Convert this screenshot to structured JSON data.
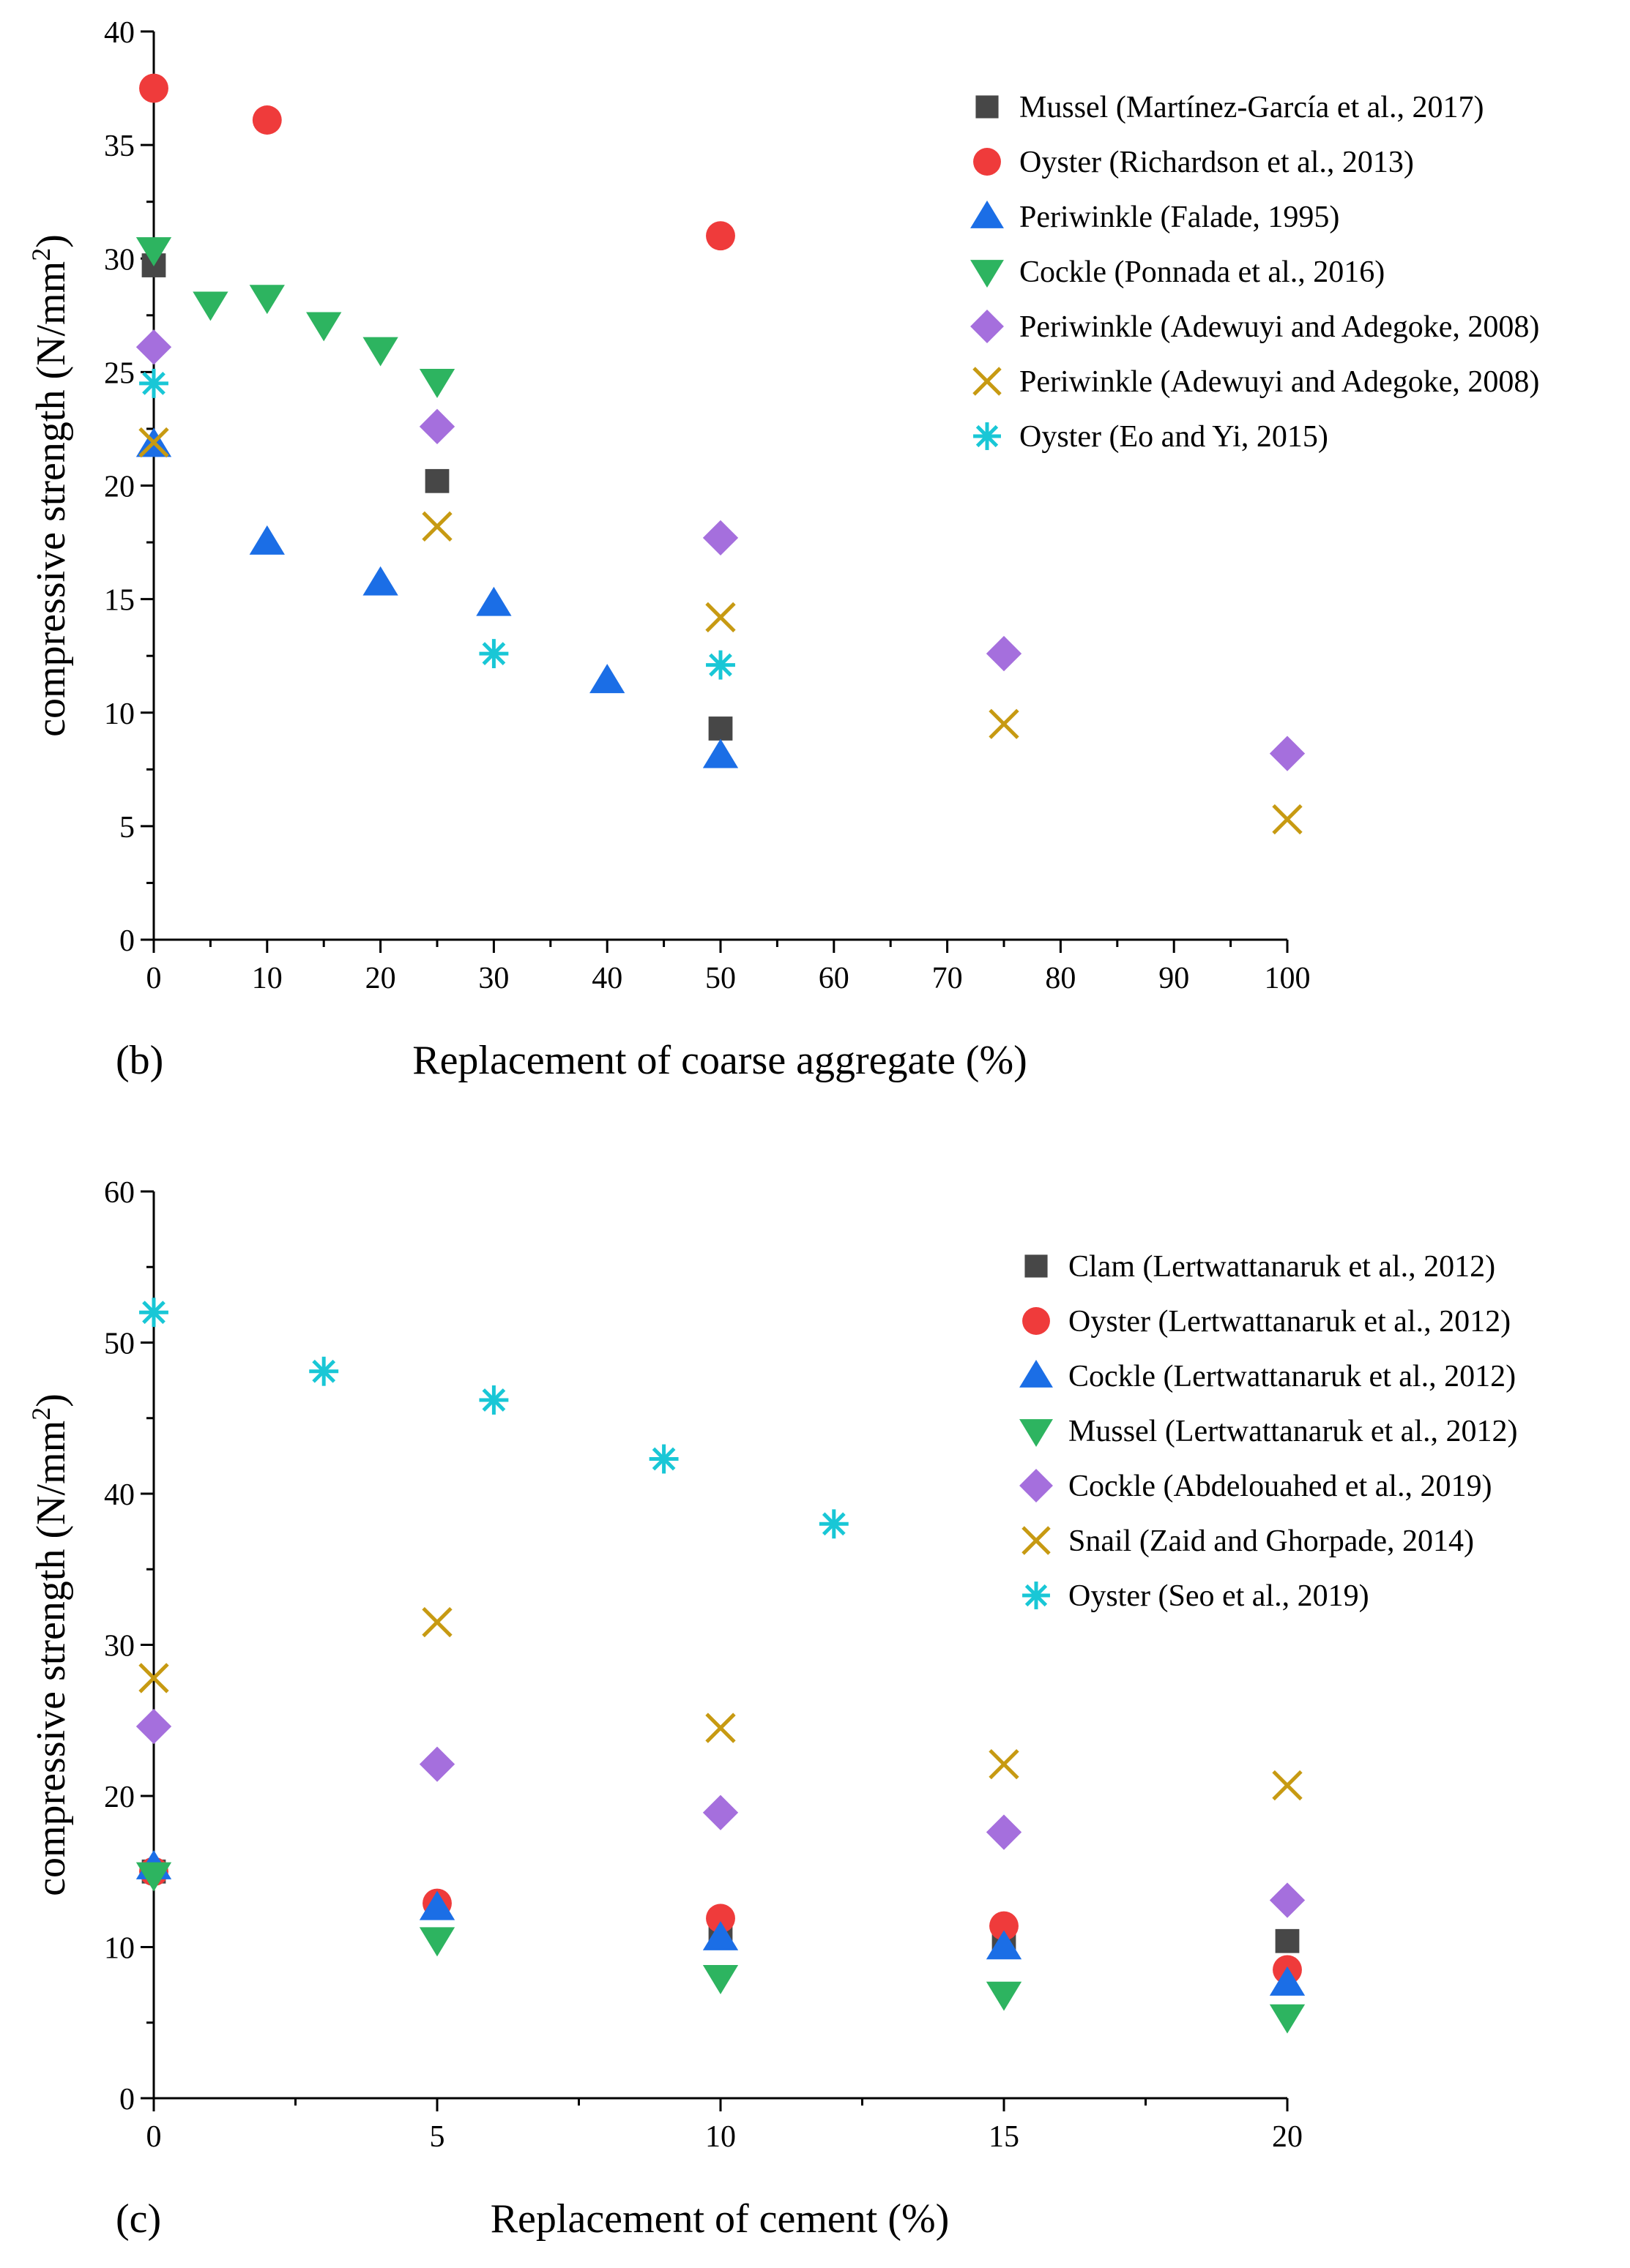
{
  "chart_data": [
    {
      "type": "scatter",
      "panel_label": "(b)",
      "xlabel": "Replacement of coarse aggregate (%)",
      "ylabel_main": "compressive strength (N/mm",
      "ylabel_sup": "2",
      "ylabel_end": ")",
      "xlim": [
        0,
        100
      ],
      "ylim": [
        0,
        40
      ],
      "xticks": [
        0,
        10,
        20,
        30,
        40,
        50,
        60,
        70,
        80,
        90,
        100
      ],
      "yticks": [
        0,
        5,
        10,
        15,
        20,
        25,
        30,
        35,
        40
      ],
      "legend_position": "top-right",
      "series": [
        {
          "name": "Mussel (Martínez-García et al., 2017)",
          "marker": "square",
          "color": "#474747",
          "points": [
            [
              0,
              29.7
            ],
            [
              25,
              20.2
            ],
            [
              50,
              9.3
            ]
          ]
        },
        {
          "name": "Oyster (Richardson et al., 2013)",
          "marker": "circle",
          "color": "#ef3b3b",
          "points": [
            [
              0,
              37.5
            ],
            [
              10,
              36.1
            ],
            [
              50,
              31.0
            ]
          ]
        },
        {
          "name": "Periwinkle (Falade, 1995)",
          "marker": "triangle-up",
          "color": "#1b6ee6",
          "points": [
            [
              0,
              21.8
            ],
            [
              10,
              17.5
            ],
            [
              20,
              15.7
            ],
            [
              30,
              14.8
            ],
            [
              40,
              11.4
            ],
            [
              50,
              8.1
            ]
          ]
        },
        {
          "name": "Cockle (Ponnada et al., 2016)",
          "marker": "triangle-down",
          "color": "#2db460",
          "points": [
            [
              0,
              30.4
            ],
            [
              5,
              28.0
            ],
            [
              10,
              28.3
            ],
            [
              15,
              27.1
            ],
            [
              20,
              26.0
            ],
            [
              25,
              24.6
            ]
          ]
        },
        {
          "name": "Periwinkle (Adewuyi and Adegoke, 2008)",
          "marker": "diamond",
          "color": "#a56fdd",
          "points": [
            [
              0,
              26.1
            ],
            [
              25,
              22.6
            ],
            [
              50,
              17.7
            ],
            [
              75,
              12.6
            ],
            [
              100,
              8.2
            ]
          ]
        },
        {
          "name": "Periwinkle (Adewuyi and Adegoke, 2008)",
          "marker": "x",
          "color": "#c79a12",
          "points": [
            [
              0,
              21.9
            ],
            [
              25,
              18.2
            ],
            [
              50,
              14.2
            ],
            [
              75,
              9.5
            ],
            [
              100,
              5.3
            ]
          ]
        },
        {
          "name": "Oyster (Eo and Yi, 2015)",
          "marker": "asterisk",
          "color": "#19c7d6",
          "points": [
            [
              0,
              24.5
            ],
            [
              30,
              12.6
            ],
            [
              50,
              12.1
            ]
          ]
        }
      ]
    },
    {
      "type": "scatter",
      "panel_label": "(c)",
      "xlabel": "Replacement of cement (%)",
      "ylabel_main": "compressive strength (N/mm",
      "ylabel_sup": "2",
      "ylabel_end": ")",
      "xlim": [
        0,
        20
      ],
      "ylim": [
        0,
        60
      ],
      "xticks": [
        0,
        5,
        10,
        15,
        20
      ],
      "yticks": [
        0,
        10,
        20,
        30,
        40,
        50,
        60
      ],
      "legend_position": "top-right",
      "series": [
        {
          "name": "Clam (Lertwattanaruk et al., 2012)",
          "marker": "square",
          "color": "#474747",
          "points": [
            [
              0,
              15.0
            ],
            [
              5,
              12.6
            ],
            [
              10,
              11.2
            ],
            [
              15,
              10.3
            ],
            [
              20,
              10.4
            ]
          ]
        },
        {
          "name": "Oyster (Lertwattanaruk et al., 2012)",
          "marker": "circle",
          "color": "#ef3b3b",
          "points": [
            [
              0,
              15.0
            ],
            [
              5,
              12.9
            ],
            [
              10,
              11.9
            ],
            [
              15,
              11.4
            ],
            [
              20,
              8.5
            ]
          ]
        },
        {
          "name": "Cockle (Lertwattanaruk et al., 2012)",
          "marker": "triangle-up",
          "color": "#1b6ee6",
          "points": [
            [
              0,
              15.3
            ],
            [
              5,
              12.6
            ],
            [
              10,
              10.6
            ],
            [
              15,
              10.0
            ],
            [
              20,
              7.6
            ]
          ]
        },
        {
          "name": "Mussel (Lertwattanaruk et al., 2012)",
          "marker": "triangle-down",
          "color": "#2db460",
          "points": [
            [
              0,
              14.8
            ],
            [
              5,
              10.5
            ],
            [
              10,
              8.0
            ],
            [
              15,
              6.9
            ],
            [
              20,
              5.4
            ]
          ]
        },
        {
          "name": "Cockle (Abdelouahed et al., 2019)",
          "marker": "diamond",
          "color": "#a56fdd",
          "points": [
            [
              0,
              24.6
            ],
            [
              5,
              22.1
            ],
            [
              10,
              18.9
            ],
            [
              15,
              17.6
            ],
            [
              20,
              13.1
            ]
          ]
        },
        {
          "name": "Snail (Zaid and Ghorpade, 2014)",
          "marker": "x",
          "color": "#c79a12",
          "points": [
            [
              0,
              27.8
            ],
            [
              5,
              31.5
            ],
            [
              10,
              24.5
            ],
            [
              15,
              22.1
            ],
            [
              20,
              20.7
            ]
          ]
        },
        {
          "name": "Oyster (Seo et al., 2019)",
          "marker": "asterisk",
          "color": "#19c7d6",
          "points": [
            [
              0,
              52.0
            ],
            [
              3,
              48.1
            ],
            [
              6,
              46.2
            ],
            [
              9,
              42.3
            ],
            [
              12,
              38.0
            ]
          ]
        }
      ]
    }
  ]
}
